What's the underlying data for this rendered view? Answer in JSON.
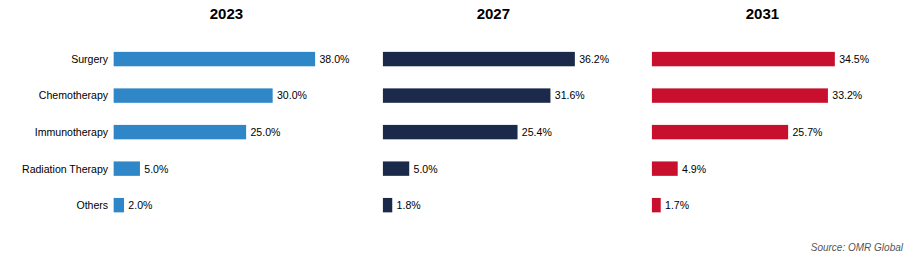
{
  "chart_data": [
    {
      "type": "bar",
      "title": "2023",
      "orientation": "horizontal",
      "categories": [
        "Others",
        "Radiation Therapy",
        "Immunotherapy",
        "Chemotherapy",
        "Surgery"
      ],
      "values": [
        2.0,
        5.0,
        25.0,
        30.0,
        38.0
      ],
      "value_labels": [
        "2.0%",
        "5.0%",
        "25.0%",
        "30.0%",
        "38.0%"
      ],
      "color": "#2F87C8",
      "xlim": [
        0,
        42
      ],
      "data_labels": true,
      "tick_labels": "y",
      "grid": false
    },
    {
      "type": "bar",
      "title": "2027",
      "orientation": "horizontal",
      "categories": [
        "Others",
        "Radiation Therapy",
        "Immunotherapy",
        "Chemotherapy",
        "Surgery"
      ],
      "values": [
        1.8,
        5.0,
        25.4,
        31.6,
        36.2
      ],
      "value_labels": [
        "1.8%",
        "5.0%",
        "25.4%",
        "31.6%",
        "36.2%"
      ],
      "color": "#1B2A4A",
      "xlim": [
        0,
        42
      ],
      "data_labels": true,
      "tick_labels": false,
      "grid": false
    },
    {
      "type": "bar",
      "title": "2031",
      "orientation": "horizontal",
      "categories": [
        "Others",
        "Radiation Therapy",
        "Immunotherapy",
        "Chemotherapy",
        "Surgery"
      ],
      "values": [
        1.7,
        4.9,
        25.7,
        33.2,
        34.5
      ],
      "value_labels": [
        "1.7%",
        "4.9%",
        "25.7%",
        "33.2%",
        "34.5%"
      ],
      "color": "#C8102E",
      "xlim": [
        0,
        42
      ],
      "data_labels": true,
      "tick_labels": false,
      "grid": false,
      "annotations": [
        "Source: OMR Global"
      ]
    }
  ]
}
